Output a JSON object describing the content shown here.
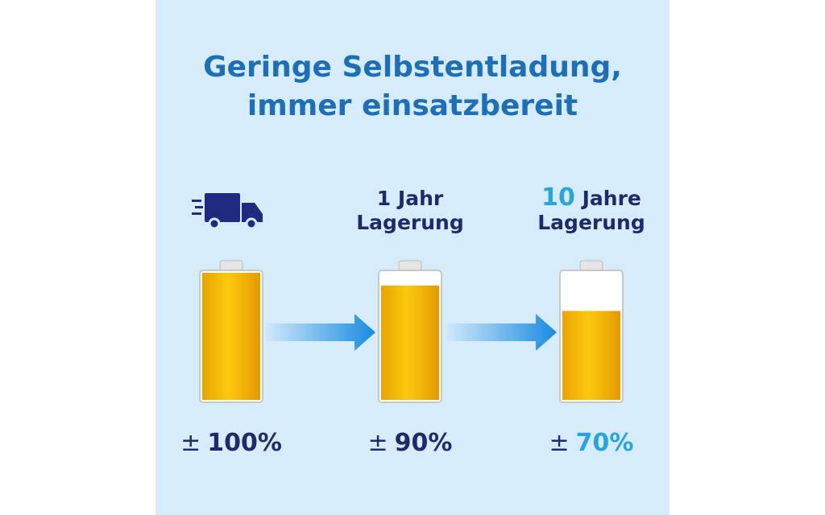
{
  "title": [
    "Geringe Selbstentladung,",
    "immer einsatzbereit"
  ],
  "panels": [
    {
      "label_prefix": null,
      "label": null,
      "sign": "±",
      "value": 100,
      "value_label": "100%"
    },
    {
      "label_prefix": null,
      "label": "1 Jahr Lagerung",
      "sign": "±",
      "value": 90,
      "value_label": "90%"
    },
    {
      "label_prefix": "10",
      "label": "Jahre Lagerung",
      "sign": "±",
      "value": 70,
      "value_label": "70%"
    }
  ]
}
